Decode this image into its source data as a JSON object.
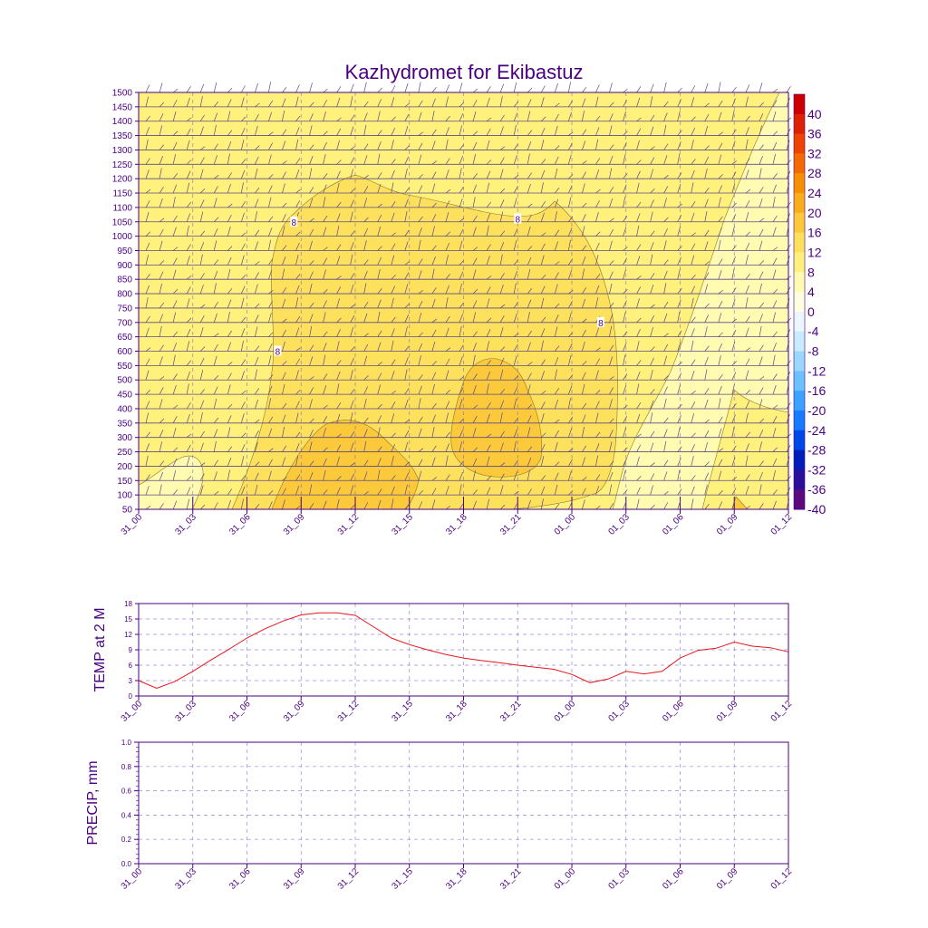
{
  "title": "Kazhydromet for Ekibastuz",
  "time_labels": [
    "31_00",
    "31_03",
    "31_06",
    "31_09",
    "31_12",
    "31_15",
    "31_18",
    "31_21",
    "01_00",
    "01_03",
    "01_06",
    "01_09",
    "01_12"
  ],
  "colors": {
    "text": "#4b0082",
    "temp_line": "#e8151b",
    "barb": "#5b4a8c",
    "grid": "#6a5acd"
  },
  "chart_data": [
    {
      "type": "heatmap",
      "name": "cross-section",
      "title": "Kazhydromet for Ekibastuz",
      "y_ticks": [
        50,
        100,
        150,
        200,
        250,
        300,
        350,
        400,
        450,
        500,
        550,
        600,
        650,
        700,
        750,
        800,
        850,
        900,
        950,
        1000,
        1050,
        1100,
        1150,
        1200,
        1250,
        1300,
        1350,
        1400,
        1450,
        1500
      ],
      "ylim": [
        50,
        1500
      ],
      "x_hours_range": [
        0,
        36
      ],
      "colorbar": {
        "labels": [
          "40",
          "36",
          "32",
          "28",
          "24",
          "20",
          "16",
          "12",
          "8",
          "4",
          "0",
          "-4",
          "-8",
          "-12",
          "-16",
          "-20",
          "-24",
          "-28",
          "-32",
          "-36",
          "-40"
        ],
        "colors": [
          "#cc0000",
          "#dd2200",
          "#ee4400",
          "#f26a00",
          "#f79000",
          "#f9ad1a",
          "#fbc93a",
          "#fde05c",
          "#fff17c",
          "#fffbb0",
          "#ffffe0",
          "#eaf7ff",
          "#c8ecff",
          "#9ad8ff",
          "#6bc2ff",
          "#3aa2ff",
          "#157cff",
          "#0048e6",
          "#001fb8",
          "#2a0f9a",
          "#5a0a7c"
        ]
      },
      "contour_labels": [
        {
          "x_hour": 8.6,
          "y_value": 1050,
          "text": "8"
        },
        {
          "x_hour": 21.0,
          "y_value": 1060,
          "text": "8"
        },
        {
          "x_hour": 25.6,
          "y_value": 700,
          "text": "8"
        },
        {
          "x_hour": 7.7,
          "y_value": 600,
          "text": "8"
        }
      ]
    },
    {
      "type": "line",
      "name": "temp-2m",
      "ylabel": "TEMP at 2 M",
      "ylim": [
        0,
        18
      ],
      "y_ticks": [
        0,
        3,
        6,
        9,
        12,
        15,
        18
      ],
      "x_hours": [
        0,
        1,
        2,
        3,
        4,
        5,
        6,
        7,
        8,
        9,
        10,
        11,
        12,
        13,
        14,
        15,
        16,
        17,
        18,
        19,
        20,
        21,
        22,
        23,
        24,
        25,
        26,
        27,
        28,
        29,
        30,
        31,
        32,
        33,
        34,
        35,
        36
      ],
      "values": [
        3.0,
        1.5,
        2.8,
        4.8,
        7.0,
        9.1,
        11.3,
        13.1,
        14.6,
        15.8,
        16.2,
        16.2,
        15.7,
        13.5,
        11.3,
        10.0,
        9.0,
        8.1,
        7.4,
        6.9,
        6.5,
        6.0,
        5.6,
        5.2,
        4.2,
        2.6,
        3.3,
        4.8,
        4.3,
        4.8,
        7.4,
        8.9,
        9.3,
        10.5,
        9.7,
        9.4,
        8.6
      ]
    },
    {
      "type": "line",
      "name": "precip",
      "ylabel": "PRECIP, mm",
      "ylim": [
        0,
        1
      ],
      "y_ticks": [
        "0.0",
        "0.2",
        "0.4",
        "0.6",
        "0.8",
        "1.0"
      ],
      "x_hours": [
        0,
        36
      ],
      "values": [
        0,
        0
      ]
    }
  ]
}
